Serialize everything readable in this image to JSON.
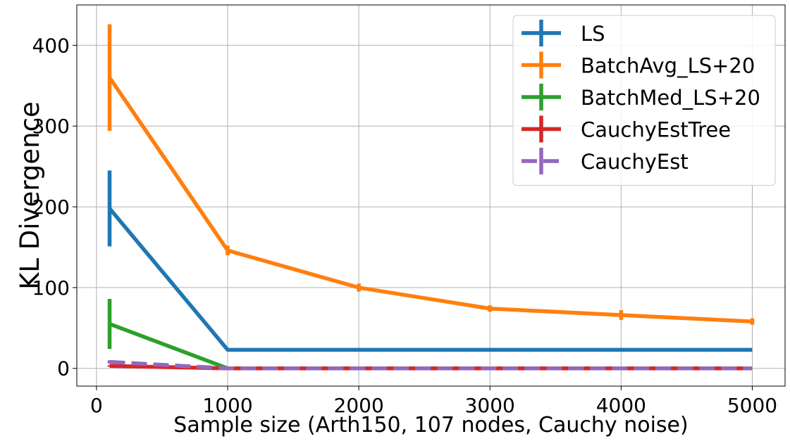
{
  "chart_data": {
    "type": "line",
    "xlabel": "Sample size (Arth150, 107 nodes, Cauchy noise)",
    "ylabel": "KL Divergence",
    "xlim": [
      -150,
      5250
    ],
    "ylim": [
      -22,
      450
    ],
    "xticks": [
      0,
      1000,
      2000,
      3000,
      4000,
      5000
    ],
    "yticks": [
      0,
      100,
      200,
      300,
      400
    ],
    "grid": true,
    "legend_position": "upper-right",
    "x": [
      100,
      1000,
      2000,
      3000,
      4000,
      5000
    ],
    "series": [
      {
        "name": "LS",
        "color": "#1f77b4",
        "dashed": false,
        "values": [
          198,
          23,
          23,
          23,
          23,
          23
        ],
        "errors": [
          47,
          0,
          0,
          0,
          0,
          0
        ]
      },
      {
        "name": "BatchAvg_LS+20",
        "color": "#ff7f0e",
        "dashed": false,
        "values": [
          360,
          146,
          100,
          74,
          66,
          58
        ],
        "errors": [
          66,
          6,
          5,
          4,
          6,
          4
        ]
      },
      {
        "name": "BatchMed_LS+20",
        "color": "#2ca02c",
        "dashed": false,
        "values": [
          55,
          0,
          0,
          0,
          0,
          0
        ],
        "errors": [
          31,
          0,
          0,
          0,
          0,
          0
        ]
      },
      {
        "name": "CauchyEstTree",
        "color": "#d62728",
        "dashed": false,
        "values": [
          3,
          0,
          0,
          0,
          0,
          0
        ],
        "errors": [
          1,
          0,
          0,
          0,
          0,
          0
        ]
      },
      {
        "name": "CauchyEst",
        "color": "#9467bd",
        "dashed": true,
        "values": [
          8,
          0,
          0,
          0,
          0,
          0
        ],
        "errors": [
          2,
          0,
          0,
          0,
          0,
          0
        ]
      }
    ]
  }
}
